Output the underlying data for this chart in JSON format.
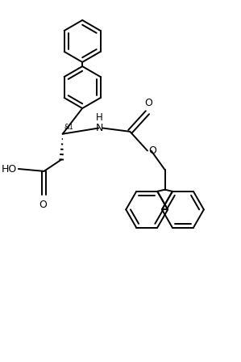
{
  "background_color": "#ffffff",
  "line_color": "#000000",
  "line_width": 1.4,
  "font_size": 8.5,
  "figsize": [
    2.99,
    4.48
  ],
  "dpi": 100,
  "xlim": [
    0,
    10
  ],
  "ylim": [
    0,
    15
  ]
}
